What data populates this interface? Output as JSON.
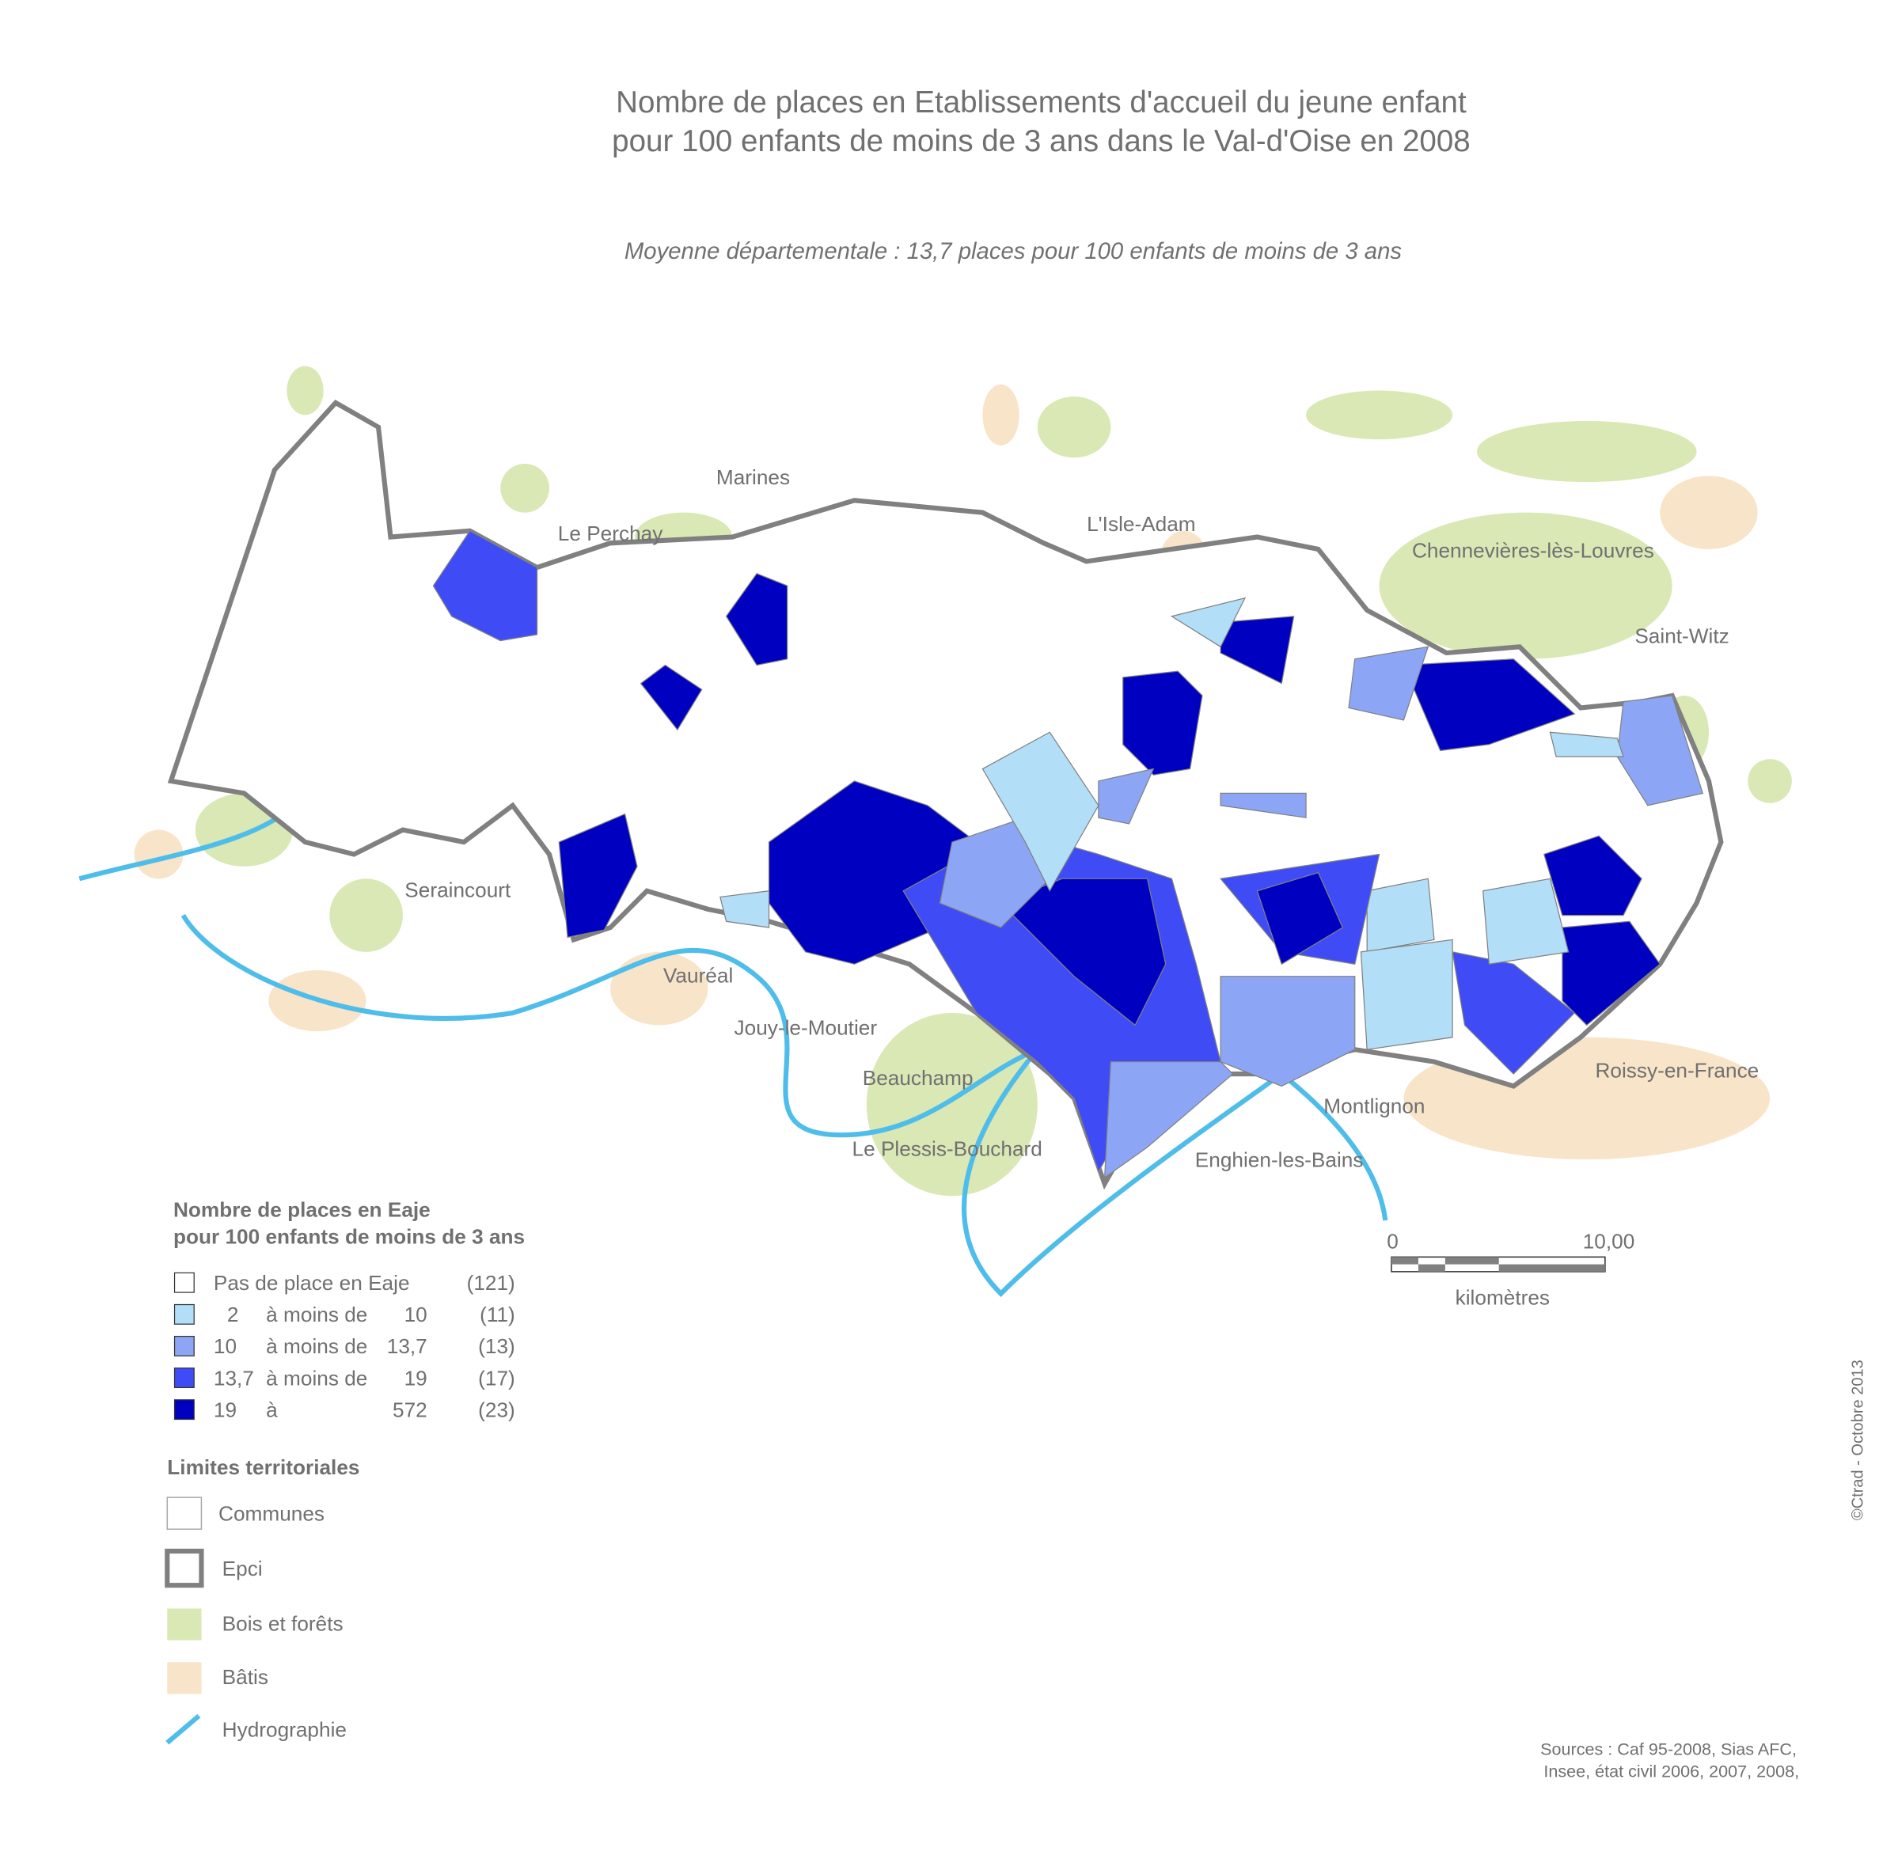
{
  "header": {
    "title": [
      "Nombre de places en Etablissements d'accueil du jeune enfant",
      "pour 100 enfants de moins de 3 ans dans le Val-d'Oise en 2008"
    ],
    "subtitle": "Moyenne départementale : 13,7 places pour 100 enfants de moins de 3 ans"
  },
  "places": [
    "Marines",
    "Le Perchay",
    "L'Isle-Adam",
    "Chennevières-lès-Louvres",
    "Saint-Witz",
    "Seraincourt",
    "Vauréal",
    "Jouy-le-Moutier",
    "Beauchamp",
    "Le Plessis-Bouchard",
    "Enghien-les-Bains",
    "Montlignon",
    "Roissy-en-France"
  ],
  "legend": {
    "title": [
      "Nombre de places en Eaje",
      "pour 100 enfants de moins de 3 ans"
    ],
    "classes": [
      {
        "color": "#ffffff",
        "cells": [
          "Pas de place en Eaje",
          "(121)"
        ]
      },
      {
        "color": "#b3def7",
        "cells": [
          "2",
          "à moins de",
          "10",
          "(11)"
        ]
      },
      {
        "color": "#8ca6f5",
        "cells": [
          "10",
          "à moins de",
          "13,7",
          "(13)"
        ]
      },
      {
        "color": "#3f4cf6",
        "cells": [
          "13,7",
          "à moins de",
          "19",
          "(17)"
        ]
      },
      {
        "color": "#0000c0",
        "cells": [
          "19",
          "à",
          "572",
          "(23)"
        ]
      }
    ],
    "limits_title": "Limites territoriales",
    "limits": [
      "Communes",
      "Epci",
      "Bois et forêts",
      "Bâtis",
      "Hydrographie"
    ]
  },
  "scale": {
    "start": "0",
    "end": "10,00",
    "unit": "kilomètres"
  },
  "sources": [
    "Sources : Caf 95-2008, Sias AFC,",
    "Insee, état civil 2006, 2007, 2008,"
  ],
  "credit": "©Ctrad - Octobre 2013"
}
